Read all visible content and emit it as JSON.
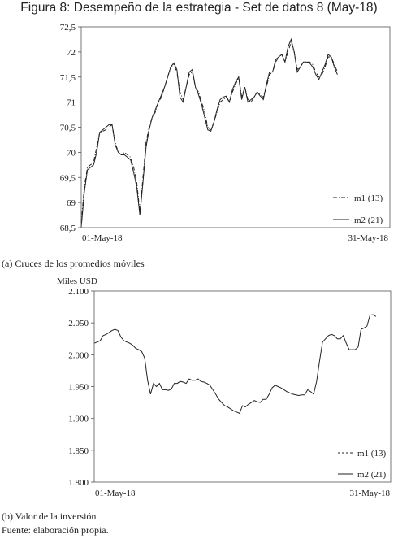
{
  "figure_title": "Figura 8: Desempeño de la estrategia - Set de datos 8 (May-18)",
  "caption_a": "(a) Cruces de los promedios móviles",
  "caption_b": "(b) Valor de la inversión",
  "source": "Fuente: elaboración propia.",
  "chart_data": [
    {
      "type": "line",
      "title": "",
      "xlabel": "",
      "ylabel": "",
      "x_range": [
        "01-May-18",
        "31-May-18"
      ],
      "x_tick_labels": [
        "01-May-18",
        "31-May-18"
      ],
      "ylim": [
        68.5,
        72.5
      ],
      "y_ticks": [
        "68,5",
        "69",
        "69,5",
        "70",
        "70,5",
        "71",
        "71,5",
        "72",
        "72,5"
      ],
      "grid": false,
      "legend_position": "bottom-right",
      "x_domain": [
        0,
        100
      ],
      "series": [
        {
          "name": "m1 (13)",
          "style": "dash-dot",
          "points": [
            [
              0,
              68.6
            ],
            [
              1,
              69.3
            ],
            [
              2,
              69.7
            ],
            [
              3,
              69.75
            ],
            [
              4,
              69.8
            ],
            [
              5,
              70.1
            ],
            [
              6,
              70.4
            ],
            [
              7,
              70.42
            ],
            [
              8,
              70.45
            ],
            [
              9,
              70.5
            ],
            [
              10,
              70.55
            ],
            [
              11,
              70.2
            ],
            [
              12,
              70.0
            ],
            [
              13,
              69.95
            ],
            [
              14,
              70.0
            ],
            [
              15,
              69.95
            ],
            [
              16,
              69.9
            ],
            [
              17,
              69.7
            ],
            [
              18,
              69.4
            ],
            [
              19,
              68.8
            ],
            [
              20,
              69.5
            ],
            [
              21,
              70.2
            ],
            [
              22,
              70.5
            ],
            [
              23,
              70.7
            ],
            [
              24,
              70.8
            ],
            [
              25,
              71.0
            ],
            [
              26,
              71.1
            ],
            [
              27,
              71.3
            ],
            [
              28,
              71.5
            ],
            [
              29,
              71.7
            ],
            [
              30,
              71.75
            ],
            [
              31,
              71.6
            ],
            [
              32,
              71.2
            ],
            [
              33,
              71.05
            ],
            [
              34,
              71.3
            ],
            [
              35,
              71.55
            ],
            [
              36,
              71.6
            ],
            [
              37,
              71.3
            ],
            [
              38,
              71.2
            ],
            [
              39,
              71.0
            ],
            [
              40,
              70.8
            ],
            [
              41,
              70.5
            ],
            [
              42,
              70.45
            ],
            [
              43,
              70.6
            ],
            [
              44,
              70.8
            ],
            [
              45,
              71.0
            ],
            [
              46,
              71.05
            ],
            [
              47,
              71.1
            ],
            [
              48,
              71.0
            ],
            [
              49,
              71.2
            ],
            [
              50,
              71.35
            ],
            [
              51,
              71.5
            ],
            [
              52,
              71.1
            ],
            [
              53,
              71.3
            ],
            [
              54,
              71.05
            ],
            [
              55,
              71.0
            ],
            [
              56,
              71.1
            ],
            [
              57,
              71.2
            ],
            [
              58,
              71.15
            ],
            [
              59,
              71.1
            ],
            [
              60,
              71.3
            ],
            [
              61,
              71.55
            ],
            [
              62,
              71.6
            ],
            [
              63,
              71.8
            ],
            [
              64,
              71.9
            ],
            [
              65,
              71.95
            ],
            [
              66,
              71.8
            ],
            [
              67,
              72.0
            ],
            [
              68,
              72.2
            ],
            [
              69,
              72.0
            ],
            [
              70,
              71.65
            ],
            [
              71,
              71.7
            ],
            [
              72,
              71.8
            ],
            [
              73,
              71.8
            ],
            [
              74,
              71.8
            ],
            [
              75,
              71.75
            ],
            [
              76,
              71.6
            ],
            [
              77,
              71.5
            ],
            [
              78,
              71.55
            ],
            [
              79,
              71.7
            ],
            [
              80,
              71.9
            ],
            [
              81,
              71.9
            ],
            [
              82,
              71.75
            ],
            [
              83,
              71.6
            ]
          ]
        },
        {
          "name": "m2 (21)",
          "style": "solid",
          "points": [
            [
              0,
              68.5
            ],
            [
              1,
              69.2
            ],
            [
              2,
              69.65
            ],
            [
              3,
              69.7
            ],
            [
              4,
              69.75
            ],
            [
              5,
              70.0
            ],
            [
              6,
              70.4
            ],
            [
              7,
              70.45
            ],
            [
              8,
              70.5
            ],
            [
              9,
              70.55
            ],
            [
              10,
              70.55
            ],
            [
              11,
              70.15
            ],
            [
              12,
              70.0
            ],
            [
              13,
              69.95
            ],
            [
              14,
              69.95
            ],
            [
              15,
              69.9
            ],
            [
              16,
              69.85
            ],
            [
              17,
              69.6
            ],
            [
              18,
              69.3
            ],
            [
              19,
              68.75
            ],
            [
              20,
              69.4
            ],
            [
              21,
              70.1
            ],
            [
              22,
              70.45
            ],
            [
              23,
              70.7
            ],
            [
              24,
              70.85
            ],
            [
              25,
              71.0
            ],
            [
              26,
              71.15
            ],
            [
              27,
              71.3
            ],
            [
              28,
              71.5
            ],
            [
              29,
              71.7
            ],
            [
              30,
              71.78
            ],
            [
              31,
              71.65
            ],
            [
              32,
              71.1
            ],
            [
              33,
              71.0
            ],
            [
              34,
              71.3
            ],
            [
              35,
              71.6
            ],
            [
              36,
              71.65
            ],
            [
              37,
              71.3
            ],
            [
              38,
              71.15
            ],
            [
              39,
              70.95
            ],
            [
              40,
              70.7
            ],
            [
              41,
              70.45
            ],
            [
              42,
              70.42
            ],
            [
              43,
              70.6
            ],
            [
              44,
              70.85
            ],
            [
              45,
              71.05
            ],
            [
              46,
              71.1
            ],
            [
              47,
              71.12
            ],
            [
              48,
              71.0
            ],
            [
              49,
              71.25
            ],
            [
              50,
              71.4
            ],
            [
              51,
              71.5
            ],
            [
              52,
              71.05
            ],
            [
              53,
              71.3
            ],
            [
              54,
              71.0
            ],
            [
              55,
              71.05
            ],
            [
              56,
              71.1
            ],
            [
              57,
              71.2
            ],
            [
              58,
              71.12
            ],
            [
              59,
              71.05
            ],
            [
              60,
              71.35
            ],
            [
              61,
              71.6
            ],
            [
              62,
              71.6
            ],
            [
              63,
              71.85
            ],
            [
              64,
              71.9
            ],
            [
              65,
              71.95
            ],
            [
              66,
              71.8
            ],
            [
              67,
              72.1
            ],
            [
              68,
              72.25
            ],
            [
              69,
              72.0
            ],
            [
              70,
              71.6
            ],
            [
              71,
              71.7
            ],
            [
              72,
              71.8
            ],
            [
              73,
              71.8
            ],
            [
              74,
              71.78
            ],
            [
              75,
              71.7
            ],
            [
              76,
              71.55
            ],
            [
              77,
              71.45
            ],
            [
              78,
              71.6
            ],
            [
              79,
              71.75
            ],
            [
              80,
              71.95
            ],
            [
              81,
              71.9
            ],
            [
              82,
              71.7
            ],
            [
              83,
              71.55
            ]
          ]
        }
      ]
    },
    {
      "type": "line",
      "title": "",
      "xlabel": "",
      "ylabel": "Miles USD",
      "x_range": [
        "01-May-18",
        "31-May-18"
      ],
      "x_tick_labels": [
        "01-May-18",
        "31-May-18"
      ],
      "ylim": [
        1.8,
        2.1
      ],
      "y_ticks": [
        "1.800",
        "1.850",
        "1.900",
        "1.950",
        "2.000",
        "2.050",
        "2.100"
      ],
      "grid": false,
      "legend_position": "bottom-right",
      "legend_labels": [
        "m1 (13)",
        "m2 (21)"
      ],
      "x_domain": [
        0,
        100
      ],
      "series": [
        {
          "name": "",
          "style": "solid",
          "points": [
            [
              0,
              2.018
            ],
            [
              1,
              2.02
            ],
            [
              2,
              2.022
            ],
            [
              3,
              2.03
            ],
            [
              4,
              2.032
            ],
            [
              5,
              2.035
            ],
            [
              6,
              2.038
            ],
            [
              7,
              2.04
            ],
            [
              8,
              2.038
            ],
            [
              9,
              2.028
            ],
            [
              10,
              2.022
            ],
            [
              11,
              2.02
            ],
            [
              12,
              2.018
            ],
            [
              13,
              2.015
            ],
            [
              14,
              2.01
            ],
            [
              15,
              2.008
            ],
            [
              16,
              2.005
            ],
            [
              17,
              1.995
            ],
            [
              18,
              1.96
            ],
            [
              19,
              1.938
            ],
            [
              20,
              1.955
            ],
            [
              21,
              1.95
            ],
            [
              22,
              1.955
            ],
            [
              23,
              1.945
            ],
            [
              24,
              1.945
            ],
            [
              25,
              1.944
            ],
            [
              26,
              1.946
            ],
            [
              27,
              1.955
            ],
            [
              28,
              1.955
            ],
            [
              29,
              1.958
            ],
            [
              30,
              1.957
            ],
            [
              31,
              1.955
            ],
            [
              32,
              1.962
            ],
            [
              33,
              1.96
            ],
            [
              34,
              1.96
            ],
            [
              35,
              1.962
            ],
            [
              36,
              1.958
            ],
            [
              37,
              1.957
            ],
            [
              38,
              1.955
            ],
            [
              39,
              1.952
            ],
            [
              40,
              1.945
            ],
            [
              41,
              1.938
            ],
            [
              42,
              1.93
            ],
            [
              43,
              1.925
            ],
            [
              44,
              1.92
            ],
            [
              45,
              1.918
            ],
            [
              46,
              1.915
            ],
            [
              47,
              1.912
            ],
            [
              48,
              1.91
            ],
            [
              49,
              1.908
            ],
            [
              50,
              1.92
            ],
            [
              51,
              1.918
            ],
            [
              52,
              1.922
            ],
            [
              53,
              1.925
            ],
            [
              54,
              1.928
            ],
            [
              55,
              1.926
            ],
            [
              56,
              1.925
            ],
            [
              57,
              1.93
            ],
            [
              58,
              1.93
            ],
            [
              59,
              1.938
            ],
            [
              60,
              1.948
            ],
            [
              61,
              1.952
            ],
            [
              62,
              1.95
            ],
            [
              63,
              1.948
            ],
            [
              64,
              1.945
            ],
            [
              65,
              1.942
            ],
            [
              66,
              1.94
            ],
            [
              67,
              1.938
            ],
            [
              68,
              1.937
            ],
            [
              69,
              1.936
            ],
            [
              70,
              1.937
            ],
            [
              71,
              1.937
            ],
            [
              72,
              1.945
            ],
            [
              73,
              1.942
            ],
            [
              74,
              1.938
            ],
            [
              75,
              1.958
            ],
            [
              76,
              1.99
            ],
            [
              77,
              2.02
            ],
            [
              78,
              2.025
            ],
            [
              79,
              2.03
            ],
            [
              80,
              2.032
            ],
            [
              81,
              2.03
            ],
            [
              82,
              2.025
            ],
            [
              83,
              2.025
            ],
            [
              84,
              2.03
            ],
            [
              85,
              2.018
            ],
            [
              86,
              2.008
            ],
            [
              87,
              2.008
            ],
            [
              88,
              2.008
            ],
            [
              89,
              2.012
            ],
            [
              90,
              2.04
            ],
            [
              91,
              2.042
            ],
            [
              92,
              2.045
            ],
            [
              93,
              2.062
            ],
            [
              94,
              2.063
            ],
            [
              95,
              2.06
            ]
          ]
        }
      ]
    }
  ]
}
